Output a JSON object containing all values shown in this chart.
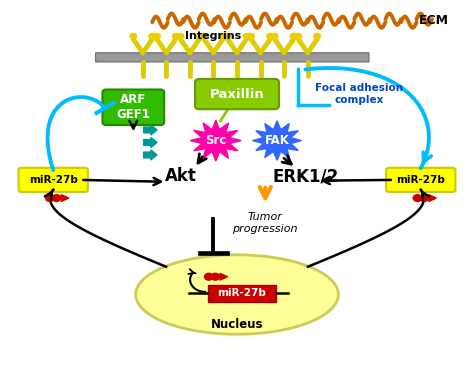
{
  "bg_color": "#ffffff",
  "ecm_label": "ECM",
  "integrins_label": "Integrins",
  "paxillin_label": "Paxillin",
  "focal_label": "Focal adhesion\ncomplex",
  "arf_label": "ARF\nGEF1",
  "src_label": "Src",
  "fak_label": "FAK",
  "akt_label": "Akt",
  "erk_label": "ERK1/2",
  "tumor_label": "Tumor\nprogression",
  "mir27b_label": "miR-27b",
  "nucleus_label": "Nucleus",
  "mir27b_nucleus_label": "miR-27b",
  "green_paxillin": "#88cc00",
  "green_arf": "#33bb00",
  "yellow_box": "#ffff00",
  "magenta_src": "#ff00aa",
  "blue_fak": "#3366ff",
  "orange_arrow": "#ff9900",
  "red_icon": "#cc0000",
  "cyan_arc": "#00bbff",
  "teal_arrow": "#009999",
  "nucleus_fill": "#ffff99",
  "nucleus_edge": "#cccc55",
  "ecm_fiber": "#cc6600",
  "membrane_gray": "#999999",
  "integrin_yellow": "#ddcc00",
  "inhibit_bar_color": "#000000"
}
